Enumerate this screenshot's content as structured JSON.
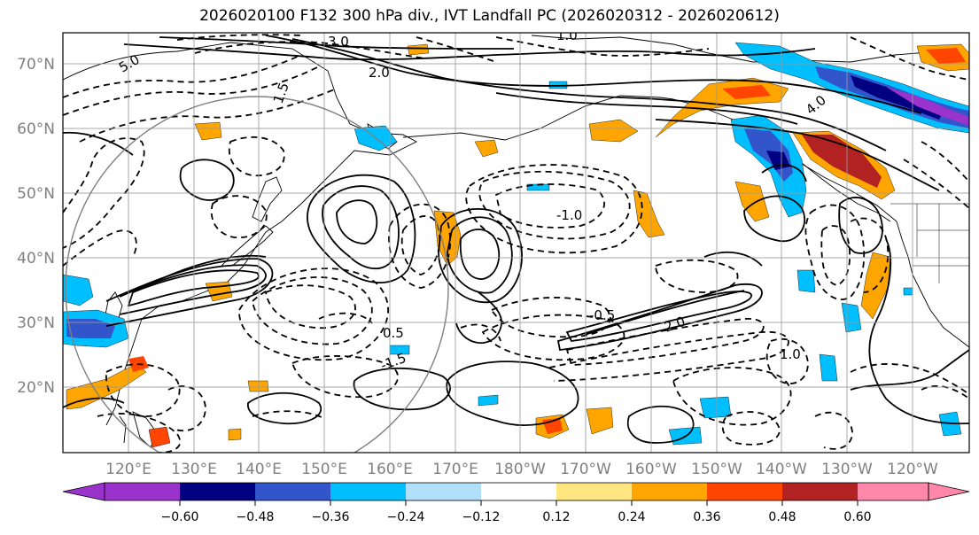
{
  "title": "2026020100 F132 300 hPa div., IVT Landfall PC (2026020312 - 2026020612)",
  "lat_labels": [
    "70°N",
    "60°N",
    "50°N",
    "40°N",
    "30°N",
    "20°N"
  ],
  "lon_labels": [
    "120°E",
    "130°E",
    "140°E",
    "150°E",
    "160°E",
    "170°E",
    "180°W",
    "170°W",
    "160°W",
    "150°W",
    "140°W",
    "130°W",
    "120°W"
  ],
  "colorbar": {
    "ticks": [
      "−0.60",
      "−0.48",
      "−0.36",
      "−0.24",
      "−0.12",
      "0.12",
      "0.24",
      "0.36",
      "0.48",
      "0.60"
    ],
    "colors": {
      "lt_neg_060": "#9933cc",
      "neg_060_048": "#000080",
      "neg_048_036": "#3355cc",
      "neg_036_024": "#00bfff",
      "neg_024_012": "#b0e0fa",
      "neg_012_012": "#ffffff",
      "pos_012_024": "#ffe680",
      "pos_024_036": "#ffa500",
      "pos_036_048": "#ff4500",
      "pos_048_060": "#b22222",
      "gt_060": "#ff88aa"
    }
  },
  "contour_labels": [
    "3.0",
    "1.0",
    "5.0",
    "2.0",
    "1.5",
    "4.0",
    "0.5",
    "-0.5",
    "-1.0",
    "-1.5",
    "2.0",
    "1.0"
  ]
}
